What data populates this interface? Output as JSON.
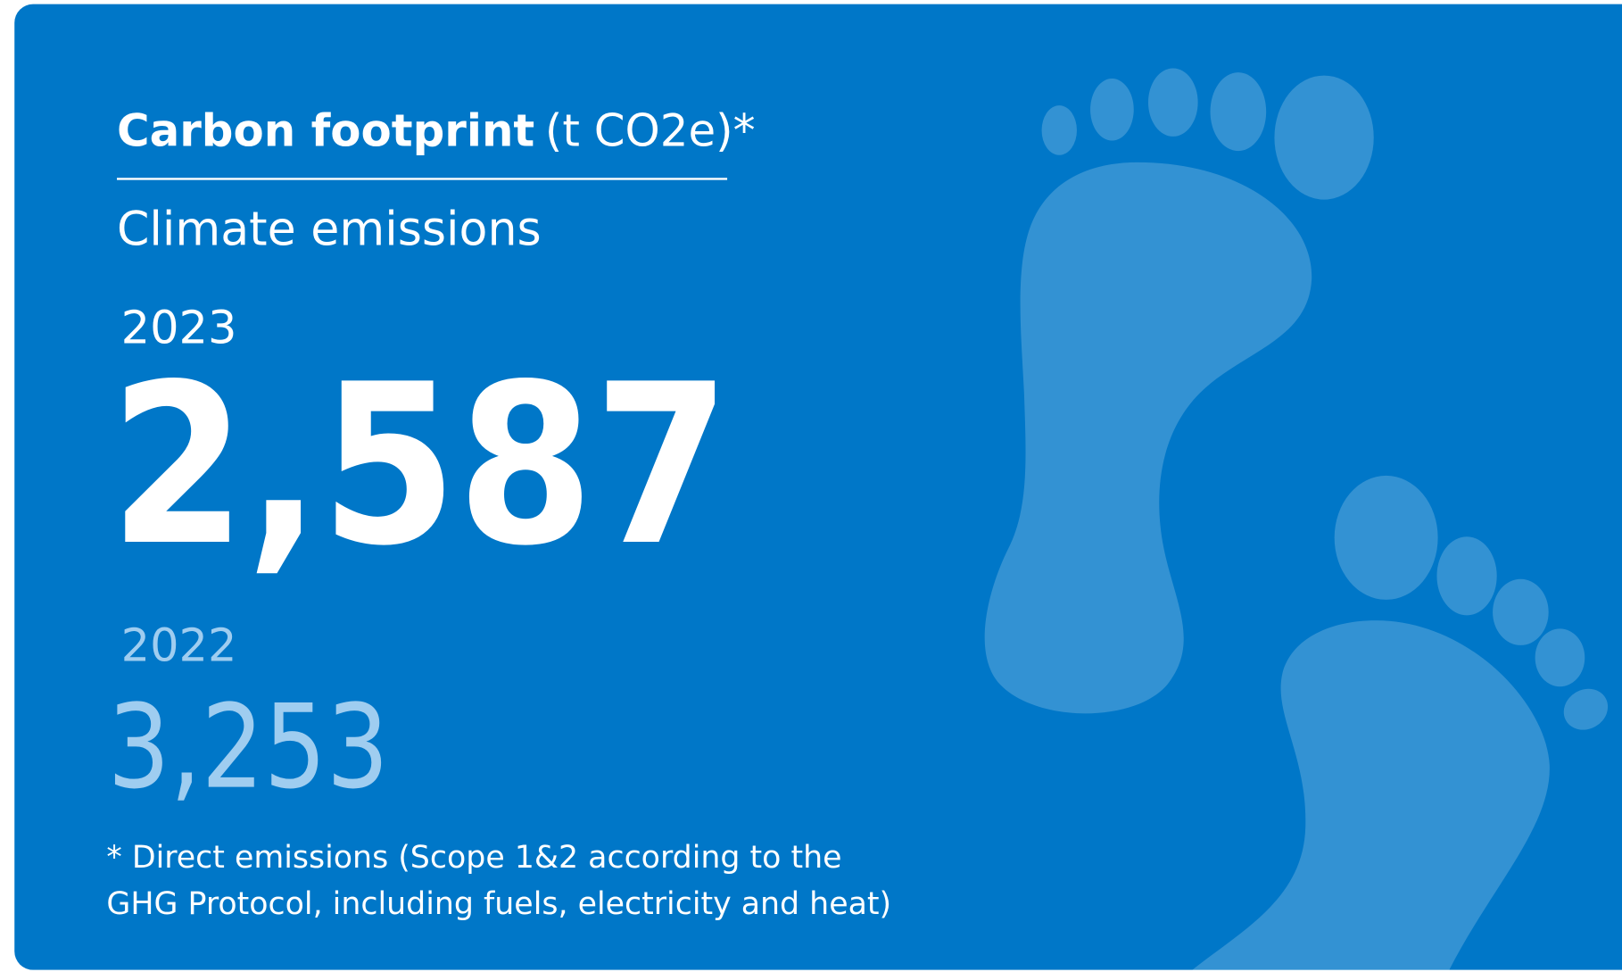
{
  "header": {
    "title": "Carbon footprint",
    "unit": "(t CO2e)*",
    "subtitle": "Climate emissions"
  },
  "current": {
    "year": "2023",
    "value": "2,587"
  },
  "previous": {
    "year": "2022",
    "value": "3,253"
  },
  "footnote": {
    "lines": [
      "* Direct emissions (Scope 1&2 according to the",
      "GHG Protocol, including fuels, electricity and heat)"
    ]
  }
}
